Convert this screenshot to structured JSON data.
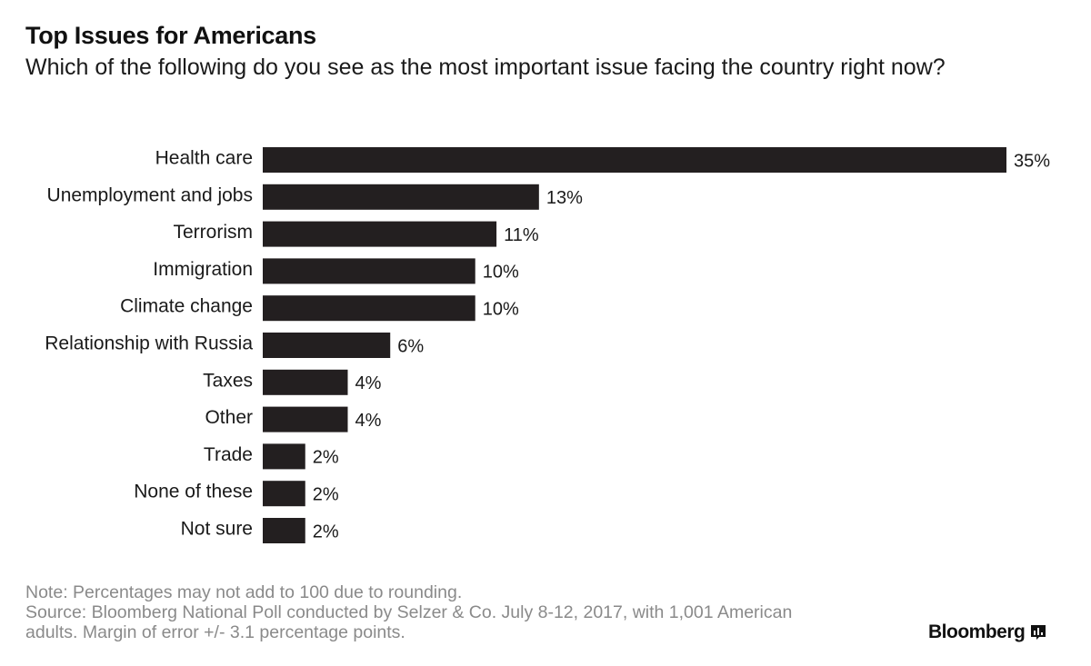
{
  "header": {
    "title": "Top Issues for Americans",
    "subtitle": "Which of the following do you see as the most important issue facing the country right now?"
  },
  "footer": {
    "note": "Note: Percentages may not add to 100 due to rounding.",
    "source_line1": "Source: Bloomberg National Poll conducted by Selzer & Co. July 8-12, 2017, with 1,001 American",
    "source_line2": "adults. Margin of error +/- 3.1 percentage points.",
    "brand": "Bloomberg",
    "brand_icon": "bloomberg-bars-icon"
  },
  "colors": {
    "bar": "#231f20",
    "text": "#1a1a1a",
    "note": "#8a8a8a"
  },
  "chart_data": {
    "type": "bar",
    "orientation": "horizontal",
    "title": "Top Issues for Americans",
    "subtitle": "Which of the following do you see as the most important issue facing the country right now?",
    "categories": [
      "Health care",
      "Unemployment and jobs",
      "Terrorism",
      "Immigration",
      "Climate change",
      "Relationship with Russia",
      "Taxes",
      "Other",
      "Trade",
      "None of these",
      "Not sure"
    ],
    "values": [
      35,
      13,
      11,
      10,
      10,
      6,
      4,
      4,
      2,
      2,
      2
    ],
    "value_labels": [
      "35%",
      "13%",
      "11%",
      "10%",
      "10%",
      "6%",
      "4%",
      "4%",
      "2%",
      "2%",
      "2%"
    ],
    "unit": "%",
    "xlim": [
      0,
      35
    ],
    "grid": false,
    "legend": "none"
  }
}
